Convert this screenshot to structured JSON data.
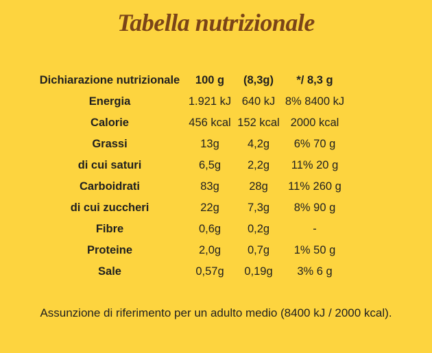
{
  "header": {
    "title": "Tabella nutrizionale"
  },
  "table": {
    "columns": [
      "Dichiarazione nutrizionale",
      "100 g",
      "(8,3g)",
      "*/ 8,3 g"
    ],
    "rows": [
      [
        "Energia",
        "1.921 kJ",
        "640 kJ",
        "8% 8400 kJ"
      ],
      [
        "Calorie",
        "456 kcal",
        "152 kcal",
        "2000 kcal"
      ],
      [
        "Grassi",
        "13g",
        "4,2g",
        "6% 70 g"
      ],
      [
        "di cui saturi",
        "6,5g",
        "2,2g",
        "11% 20 g"
      ],
      [
        "Carboidrati",
        "83g",
        "28g",
        "11% 260 g"
      ],
      [
        "di cui zuccheri",
        "22g",
        "7,3g",
        "8% 90 g"
      ],
      [
        "Fibre",
        "0,6g",
        "0,2g",
        "-"
      ],
      [
        "Proteine",
        "2,0g",
        "0,7g",
        "1% 50 g"
      ],
      [
        "Sale",
        "0,57g",
        "0,19g",
        "3% 6 g"
      ]
    ]
  },
  "footnote": "Assunzione di riferimento per un adulto medio (8400 kJ / 2000 kcal)."
}
